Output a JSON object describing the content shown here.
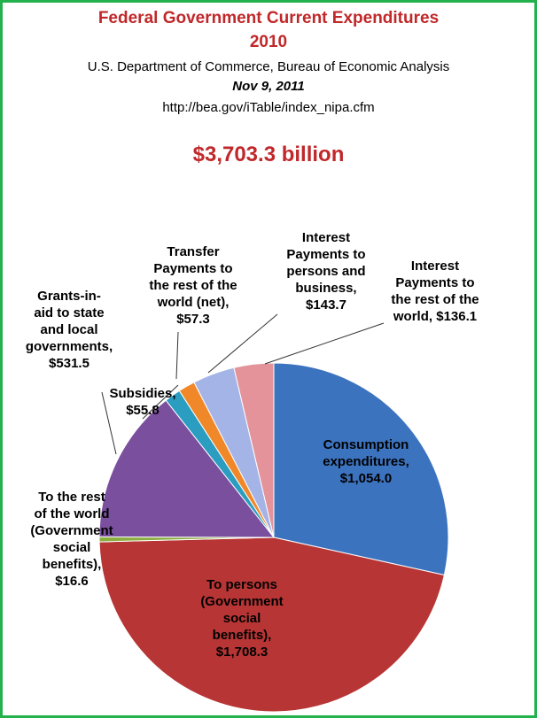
{
  "header": {
    "title_line1": "Federal Government Current Expenditures",
    "title_line2": "2010",
    "source": "U.S. Department of Commerce, Bureau of Economic Analysis",
    "date": "Nov 9, 2011",
    "url": "http://bea.gov/iTable/index_nipa.cfm",
    "total": "$3,703.3 billion"
  },
  "chart_data": {
    "type": "pie",
    "title": "Federal Government Current Expenditures 2010",
    "total": 3703.3,
    "start_angle_deg": 0,
    "direction": "clockwise",
    "slices": [
      {
        "label_lines": [
          "Consumption",
          "expenditures,",
          "$1,054.0"
        ],
        "value": 1054.0,
        "color": "#3c73be"
      },
      {
        "label_lines": [
          "To persons",
          "(Government",
          "social",
          "benefits),",
          "$1,708.3"
        ],
        "value": 1708.3,
        "color": "#b73534"
      },
      {
        "label_lines": [
          "To the rest",
          "of the world",
          "(Government",
          "social",
          "benefits),",
          "$16.6"
        ],
        "value": 16.6,
        "color": "#8bae3f"
      },
      {
        "label_lines": [
          "Grants-in-",
          "aid to state",
          "and local",
          "governments,",
          "$531.5"
        ],
        "value": 531.5,
        "color": "#7a4f9e"
      },
      {
        "label_lines": [
          "Subsidies,",
          "$55.8"
        ],
        "value": 55.8,
        "color": "#2a9dc0"
      },
      {
        "label_lines": [
          "Transfer",
          "Payments to",
          "the rest of the",
          "world (net),",
          "$57.3"
        ],
        "value": 57.3,
        "color": "#f0882a"
      },
      {
        "label_lines": [
          "Interest",
          "Payments to",
          "persons and",
          "business,",
          "$143.7"
        ],
        "value": 143.7,
        "color": "#a5b4e6"
      },
      {
        "label_lines": [
          "Interest",
          "Payments to",
          "the rest of the",
          "world, $136.1"
        ],
        "value": 136.1,
        "color": "#e4939a"
      }
    ]
  }
}
